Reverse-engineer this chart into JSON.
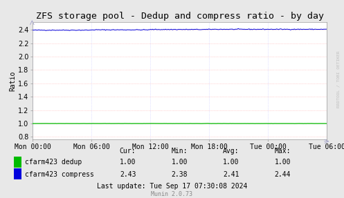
{
  "title": "ZFS storage pool - Dedup and compress ratio - by day",
  "ylabel": "Ratio",
  "background_color": "#e8e8e8",
  "plot_bg_color": "#ffffff",
  "grid_color_h": "#ffb0b0",
  "grid_color_v": "#c8c8ff",
  "x_labels": [
    "Mon 00:00",
    "Mon 06:00",
    "Mon 12:00",
    "Mon 18:00",
    "Tue 00:00",
    "Tue 06:00"
  ],
  "ylim": [
    0.76,
    2.52
  ],
  "yticks": [
    0.8,
    1.0,
    1.2,
    1.4,
    1.6,
    1.8,
    2.0,
    2.2,
    2.4
  ],
  "dedup_color": "#00bb00",
  "compress_color": "#0000dd",
  "table_headers": [
    "Cur:",
    "Min:",
    "Avg:",
    "Max:"
  ],
  "table_row1": [
    "1.00",
    "1.00",
    "1.00",
    "1.00"
  ],
  "table_row2": [
    "2.43",
    "2.38",
    "2.41",
    "2.44"
  ],
  "label_row1": "cfarm423 dedup",
  "label_row2": "cfarm423 compress",
  "last_update": "Last update: Tue Sep 17 07:30:08 2024",
  "munin_version": "Munin 2.0.73",
  "watermark": "RRDTOOL / TOBI OETIKER",
  "title_fontsize": 9.5,
  "axis_fontsize": 7,
  "table_fontsize": 7,
  "wm_fontsize": 4.5
}
